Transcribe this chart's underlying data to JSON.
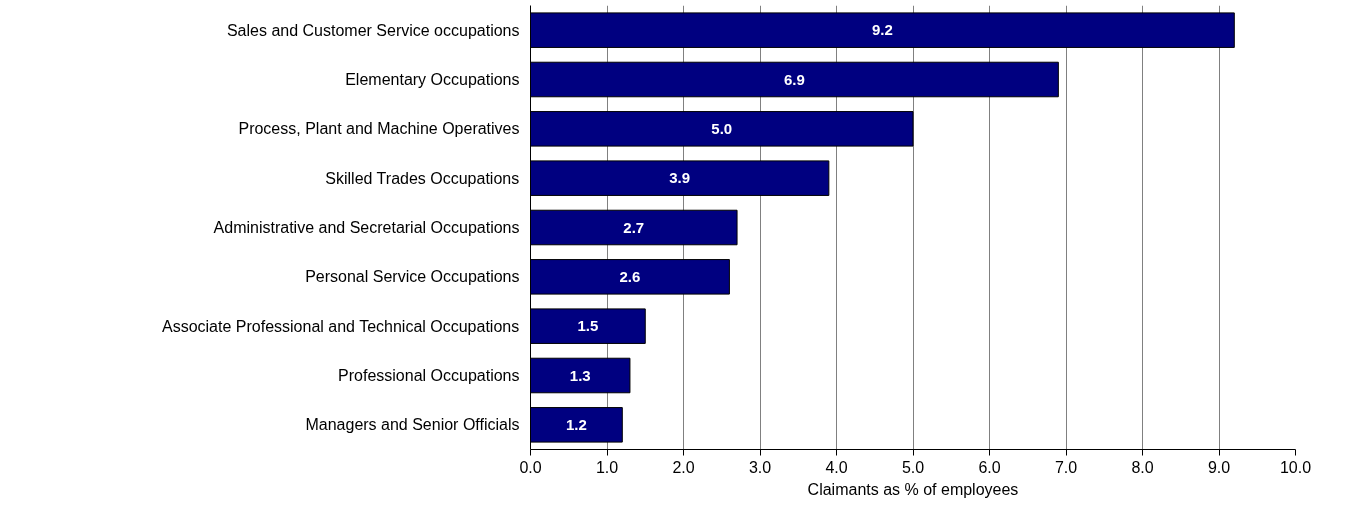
{
  "chart_data": {
    "type": "bar",
    "orientation": "horizontal",
    "xlabel": "Claimants as % of employees",
    "categories": [
      "Sales and Customer Service occupations",
      "Elementary Occupations",
      "Process, Plant and Machine Operatives",
      "Skilled Trades Occupations",
      "Administrative and Secretarial Occupations",
      "Personal Service Occupations",
      "Associate Professional and Technical Occupations",
      "Professional Occupations",
      "Managers and Senior Officials"
    ],
    "values": [
      9.2,
      6.9,
      5.0,
      3.9,
      2.7,
      2.6,
      1.5,
      1.3,
      1.2
    ],
    "value_labels": [
      "9.2",
      "6.9",
      "5.0",
      "3.9",
      "2.7",
      "2.6",
      "1.5",
      "1.3",
      "1.2"
    ],
    "color": "#000080",
    "xlim": [
      0,
      10
    ],
    "xticks": [
      {
        "value": 0,
        "label": "0.0"
      },
      {
        "value": 1,
        "label": "1.0"
      },
      {
        "value": 2,
        "label": "2.0"
      },
      {
        "value": 3,
        "label": "3.0"
      },
      {
        "value": 4,
        "label": "4.0"
      },
      {
        "value": 5,
        "label": "5.0"
      },
      {
        "value": 6,
        "label": "6.0"
      },
      {
        "value": 7,
        "label": "7.0"
      },
      {
        "value": 8,
        "label": "8.0"
      },
      {
        "value": 9,
        "label": "9.0"
      },
      {
        "value": 10,
        "label": "10.0"
      }
    ],
    "grid": "x"
  }
}
